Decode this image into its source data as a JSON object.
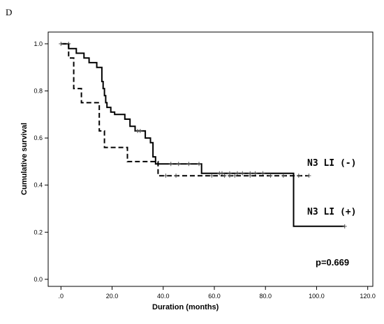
{
  "panel_label": "D",
  "chart_data": {
    "type": "line",
    "subtype": "kaplan-meier step curve",
    "xlabel": "Duration (months)",
    "ylabel": "Cumulative survival",
    "xlim": [
      -5,
      122
    ],
    "ylim": [
      -0.03,
      1.05
    ],
    "x_ticks": [
      0,
      20,
      40,
      60,
      80,
      100,
      120
    ],
    "x_tick_labels": [
      ".0",
      "20.0",
      "40.0",
      "60.0",
      "80.0",
      "100.0",
      "120.0"
    ],
    "y_ticks": [
      0.0,
      0.2,
      0.4,
      0.6,
      0.8,
      1.0
    ],
    "y_tick_labels": [
      "0.0",
      "0.2",
      "0.4",
      "0.6",
      "0.8",
      "1.0"
    ],
    "grid": false,
    "series": [
      {
        "name": "N3 LI (-)",
        "line_style": "solid",
        "color": "#000000",
        "steps": [
          [
            0,
            1.0
          ],
          [
            3,
            0.98
          ],
          [
            6,
            0.96
          ],
          [
            9,
            0.94
          ],
          [
            11,
            0.92
          ],
          [
            14,
            0.9
          ],
          [
            16,
            0.84
          ],
          [
            16.5,
            0.81
          ],
          [
            17,
            0.78
          ],
          [
            17.5,
            0.75
          ],
          [
            18,
            0.73
          ],
          [
            19.5,
            0.71
          ],
          [
            21,
            0.7
          ],
          [
            25,
            0.68
          ],
          [
            27,
            0.65
          ],
          [
            29,
            0.63
          ],
          [
            33,
            0.6
          ],
          [
            35,
            0.58
          ],
          [
            36,
            0.52
          ],
          [
            37,
            0.49
          ],
          [
            55,
            0.45
          ],
          [
            91,
            0.225
          ],
          [
            111,
            0.225
          ]
        ],
        "censored": [
          [
            3,
            1.0
          ],
          [
            30,
            0.63
          ],
          [
            31,
            0.63
          ],
          [
            43,
            0.49
          ],
          [
            46,
            0.49
          ],
          [
            50,
            0.49
          ],
          [
            54,
            0.49
          ],
          [
            62,
            0.45
          ],
          [
            63,
            0.45
          ],
          [
            66,
            0.45
          ],
          [
            69,
            0.45
          ],
          [
            71,
            0.45
          ],
          [
            74,
            0.45
          ],
          [
            76,
            0.45
          ],
          [
            79,
            0.45
          ],
          [
            111,
            0.225
          ]
        ]
      },
      {
        "name": "N3 LI (+)",
        "line_style": "dashed",
        "color": "#000000",
        "steps": [
          [
            0,
            1.0
          ],
          [
            3,
            0.94
          ],
          [
            5,
            0.81
          ],
          [
            8,
            0.75
          ],
          [
            15,
            0.63
          ],
          [
            17,
            0.56
          ],
          [
            26,
            0.5
          ],
          [
            38,
            0.44
          ],
          [
            97,
            0.44
          ]
        ],
        "censored": [
          [
            0,
            1.0
          ],
          [
            41,
            0.44
          ],
          [
            45,
            0.44
          ],
          [
            59,
            0.44
          ],
          [
            64,
            0.44
          ],
          [
            66,
            0.44
          ],
          [
            68,
            0.44
          ],
          [
            74,
            0.44
          ],
          [
            82,
            0.44
          ],
          [
            87,
            0.44
          ],
          [
            93,
            0.44
          ],
          [
            97,
            0.44
          ]
        ]
      }
    ],
    "annotations": {
      "label_a": "N3 LI (-)",
      "label_b": "N3 LI (+)",
      "p_value": "p=0.669"
    }
  }
}
